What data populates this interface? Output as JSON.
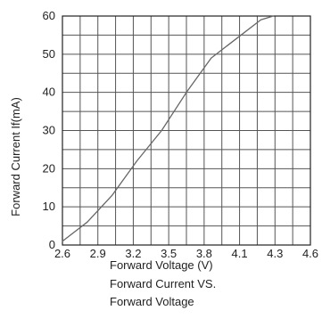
{
  "chart_data": {
    "type": "line",
    "title_lines": [
      "Forward Current VS.",
      "Forward Voltage"
    ],
    "xlabel": "Forward Voltage (V)",
    "ylabel": "Forward Current If(mA)",
    "x_tick_labels": [
      "2.6",
      "2.9",
      "3.2",
      "3.5",
      "3.8",
      "4.1",
      "4.3",
      "4.6"
    ],
    "y_tick_labels": [
      "0",
      "10",
      "20",
      "30",
      "40",
      "50",
      "60"
    ],
    "xlim": [
      2.6,
      4.6
    ],
    "ylim": [
      0,
      60
    ],
    "grid": true,
    "series": [
      {
        "x": [
          2.6,
          2.8,
          3.0,
          3.2,
          3.4,
          3.6,
          3.8,
          4.0,
          4.2,
          4.3
        ],
        "y": [
          1,
          6,
          13,
          22,
          30,
          40,
          49,
          54,
          59,
          60
        ]
      }
    ]
  }
}
